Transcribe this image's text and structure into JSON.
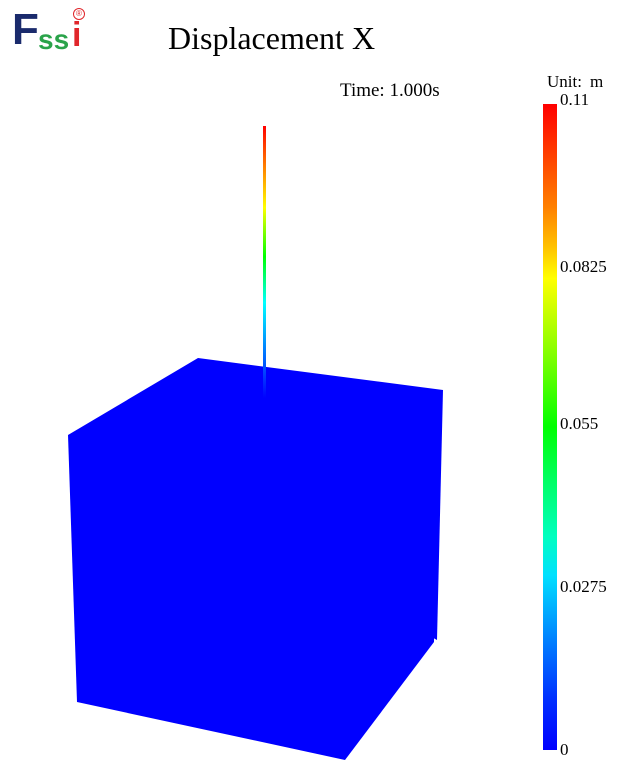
{
  "logo": {
    "f": "F",
    "s": "ss",
    "i": "i",
    "reg": "®"
  },
  "title": "Displacement X",
  "time_label": "Time: 1.000s",
  "unit": {
    "label": "Unit:",
    "value": "m"
  },
  "colorbar": {
    "min": 0,
    "max": 0.11,
    "ticks": [
      "0.11",
      "0.0825",
      "0.055",
      "0.0275",
      "0"
    ],
    "colors": {
      "max": "#ff0000",
      "mid": "#00ff00",
      "min": "#0000ff"
    }
  },
  "model": {
    "cube_color": "#0000ff",
    "pile_top_color": "#ff0000",
    "pile_bottom_color": "#0000ff"
  }
}
